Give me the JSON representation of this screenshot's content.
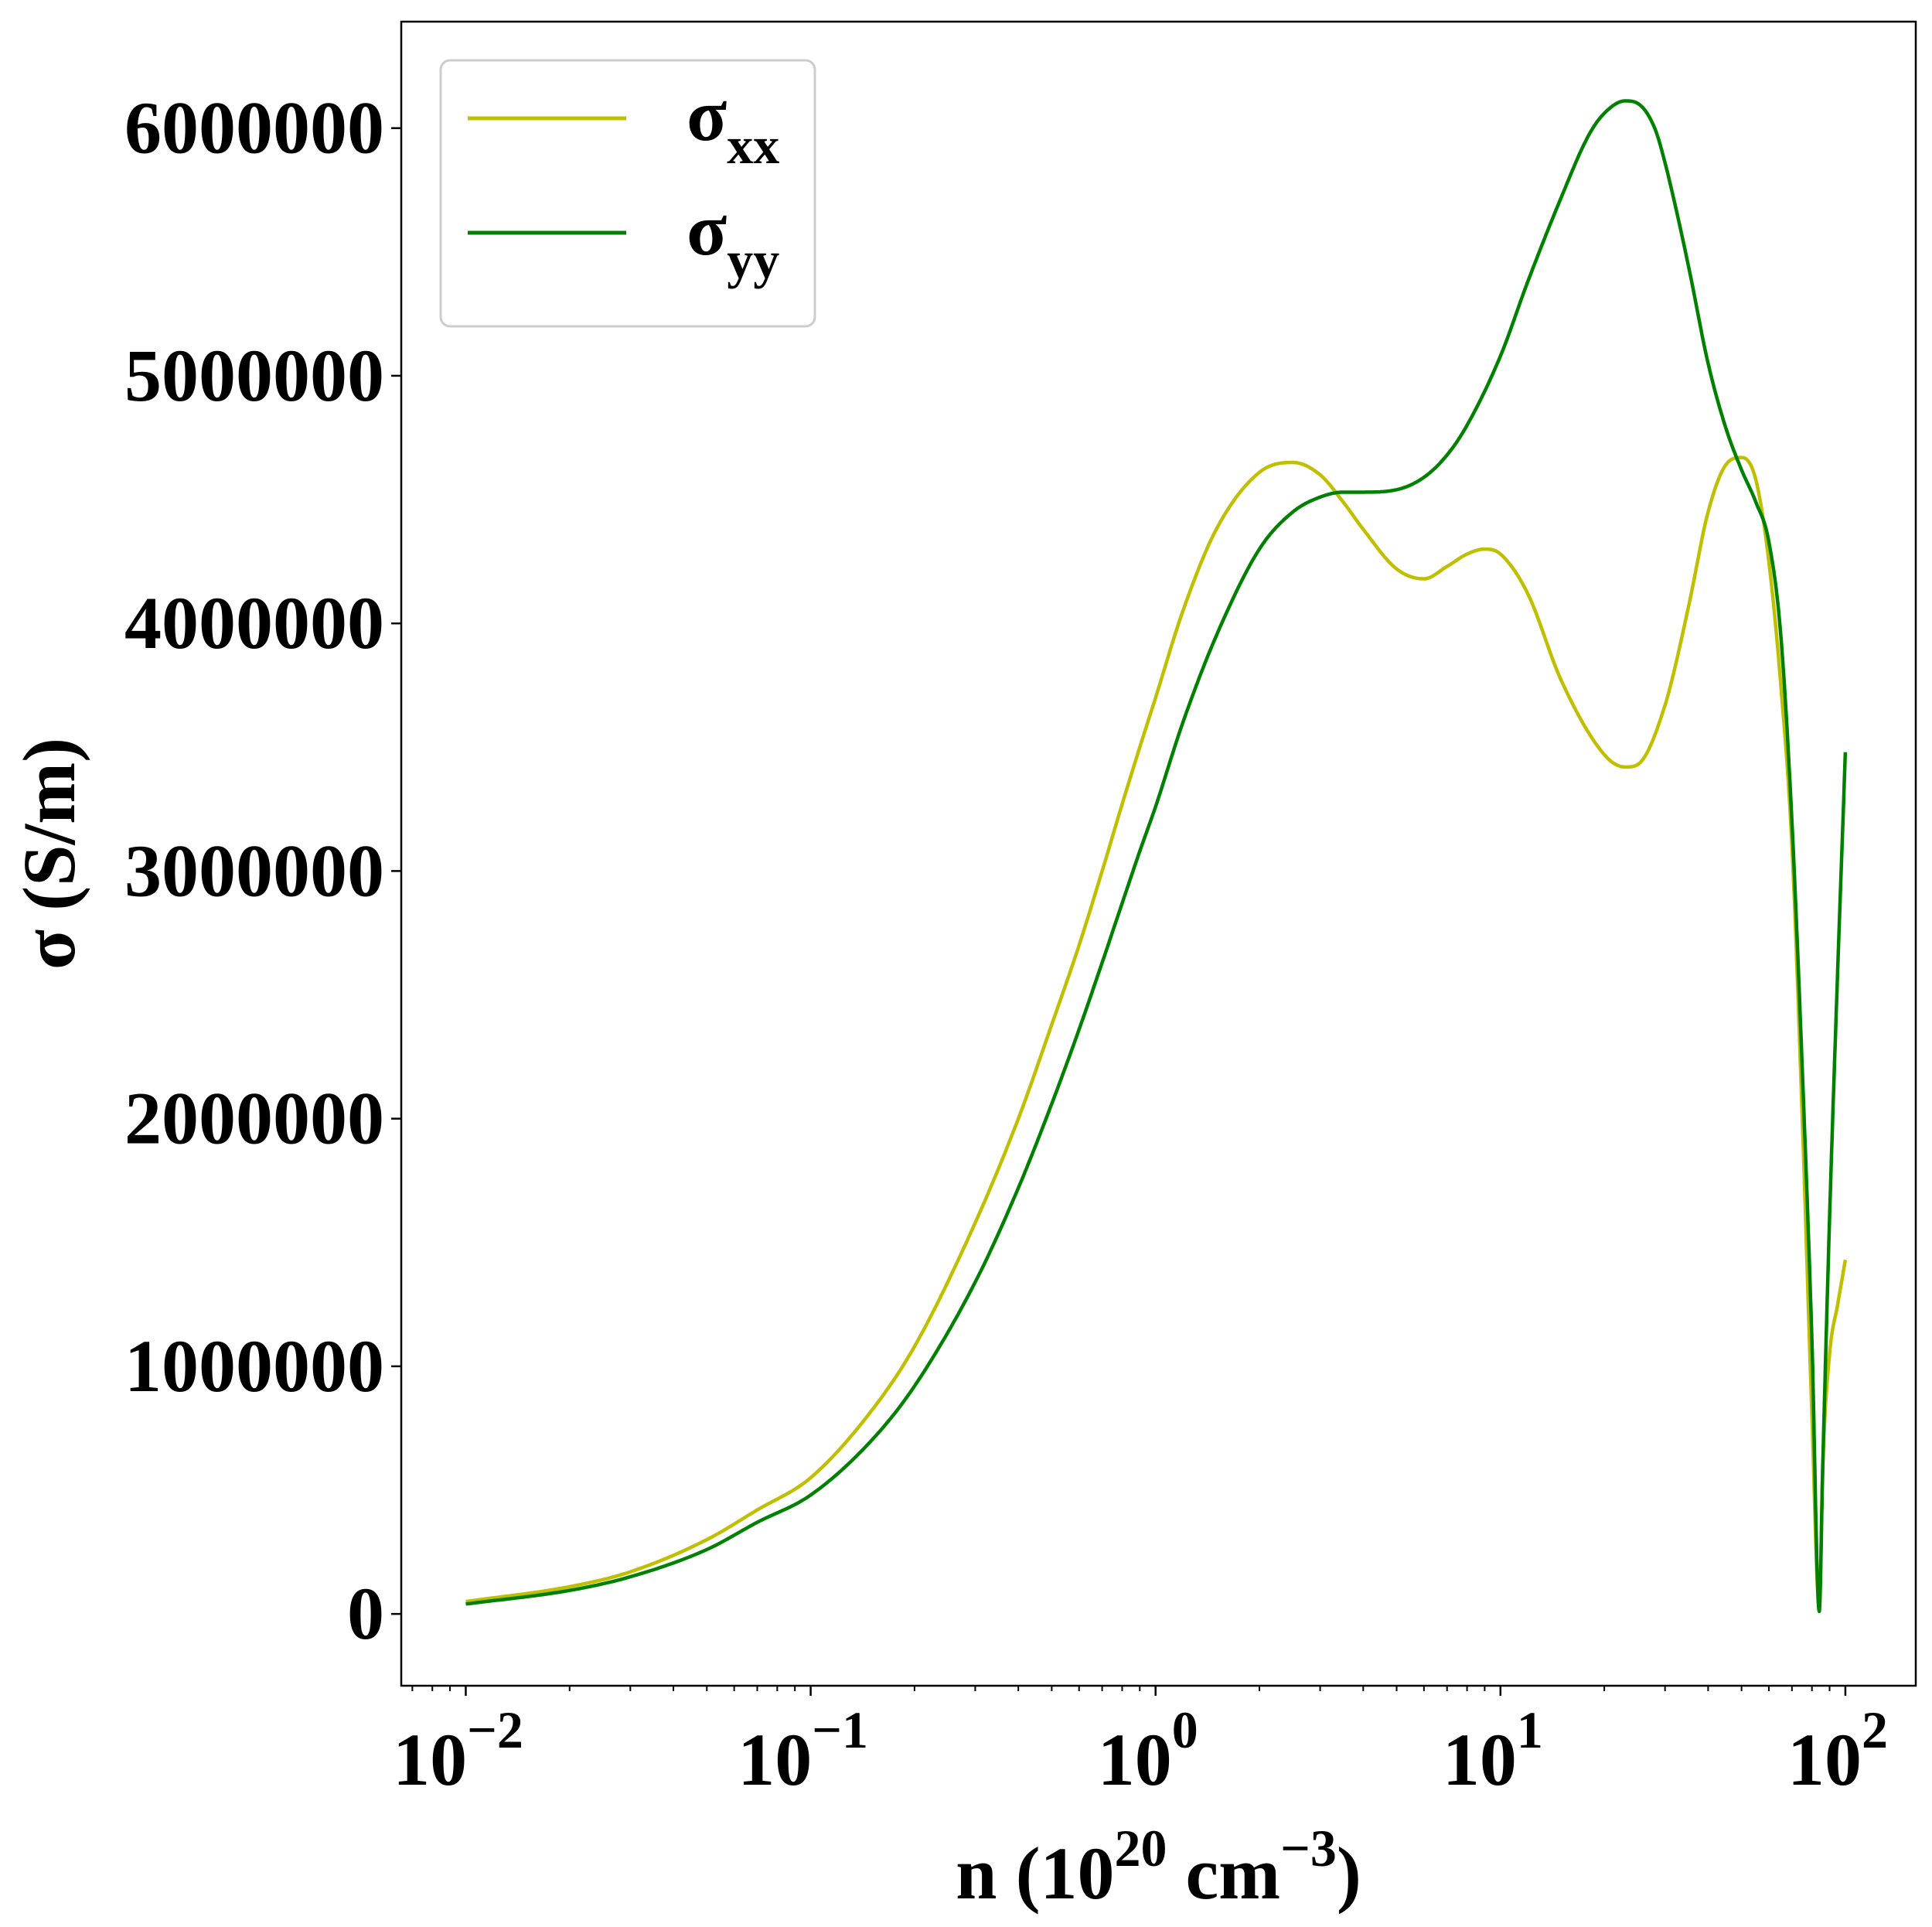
{
  "chart_data": {
    "type": "line",
    "title": "",
    "xlabel": {
      "base": "n (10",
      "sup1": "20",
      "mid": " cm",
      "sup2": "−3",
      "end": ")"
    },
    "ylabel": "σ (S/m)",
    "xscale": "log",
    "xlim": [
      0.0065,
      160
    ],
    "ylim": [
      -290000,
      6430000
    ],
    "grid": false,
    "legend_position": "top-left",
    "yticks": [
      {
        "value": 0,
        "label": "0"
      },
      {
        "value": 1000000,
        "label": "1000000"
      },
      {
        "value": 2000000,
        "label": "2000000"
      },
      {
        "value": 3000000,
        "label": "3000000"
      },
      {
        "value": 4000000,
        "label": "4000000"
      },
      {
        "value": 5000000,
        "label": "5000000"
      },
      {
        "value": 6000000,
        "label": "6000000"
      }
    ],
    "xticks": [
      {
        "value": 0.01,
        "base": "10",
        "exp": "−2"
      },
      {
        "value": 0.1,
        "base": "10",
        "exp": "−1"
      },
      {
        "value": 1,
        "base": "10",
        "exp": "0"
      },
      {
        "value": 10,
        "base": "10",
        "exp": "1"
      },
      {
        "value": 100,
        "base": "10",
        "exp": "2"
      }
    ],
    "series": [
      {
        "name": "σ_xx",
        "legend_main": "σ",
        "legend_sub": "xx",
        "color": "#bfbf00",
        "x": [
          0.01,
          0.02,
          0.03,
          0.05,
          0.07,
          0.1,
          0.15,
          0.2,
          0.3,
          0.4,
          0.5,
          0.6,
          0.7,
          0.8,
          0.9,
          1.0,
          1.2,
          1.5,
          2.0,
          2.5,
          3.0,
          3.5,
          4.0,
          5.0,
          6.0,
          7.0,
          8.0,
          9.0,
          10.0,
          12.0,
          15.0,
          20.0,
          23.0,
          25.0,
          30.0,
          35.0,
          40.0,
          45.0,
          50.0,
          55.0,
          60.0,
          65.0,
          70.0,
          75.0,
          80.0,
          84.0,
          86.0,
          90.0,
          95.0,
          100.0
        ],
        "y": [
          50000,
          110000,
          170000,
          300000,
          420000,
          550000,
          820000,
          1080000,
          1580000,
          2000000,
          2380000,
          2700000,
          3000000,
          3270000,
          3500000,
          3700000,
          4050000,
          4380000,
          4610000,
          4650000,
          4600000,
          4490000,
          4380000,
          4220000,
          4180000,
          4230000,
          4280000,
          4300000,
          4280000,
          4120000,
          3770000,
          3470000,
          3420000,
          3430000,
          3670000,
          4060000,
          4450000,
          4640000,
          4670000,
          4580000,
          4250000,
          3750000,
          3100000,
          2000000,
          800000,
          30000,
          600000,
          1050000,
          1250000,
          1430000
        ]
      },
      {
        "name": "σ_yy",
        "legend_main": "σ",
        "legend_sub": "yy",
        "color": "#008000",
        "x": [
          0.01,
          0.02,
          0.03,
          0.05,
          0.07,
          0.1,
          0.15,
          0.2,
          0.3,
          0.4,
          0.5,
          0.6,
          0.7,
          0.8,
          0.9,
          1.0,
          1.2,
          1.5,
          2.0,
          2.5,
          3.0,
          3.5,
          4.0,
          5.0,
          6.0,
          7.0,
          8.0,
          10.0,
          12.0,
          15.0,
          18.0,
          20.0,
          23.0,
          25.0,
          28.0,
          30.0,
          35.0,
          40.0,
          45.0,
          50.0,
          55.0,
          60.0,
          65.0,
          70.0,
          75.0,
          80.0,
          84.0,
          86.0,
          90.0,
          95.0,
          100.0
        ],
        "y": [
          40000,
          95000,
          150000,
          260000,
          370000,
          480000,
          700000,
          920000,
          1340000,
          1720000,
          2060000,
          2360000,
          2630000,
          2870000,
          3080000,
          3260000,
          3600000,
          3950000,
          4300000,
          4450000,
          4510000,
          4530000,
          4530000,
          4540000,
          4590000,
          4680000,
          4800000,
          5080000,
          5380000,
          5720000,
          5970000,
          6060000,
          6110000,
          6100000,
          6000000,
          5860000,
          5450000,
          5050000,
          4790000,
          4620000,
          4490000,
          4330000,
          3950000,
          3200000,
          2200000,
          1100000,
          10000,
          600000,
          1600000,
          2600000,
          3480000
        ]
      }
    ]
  }
}
